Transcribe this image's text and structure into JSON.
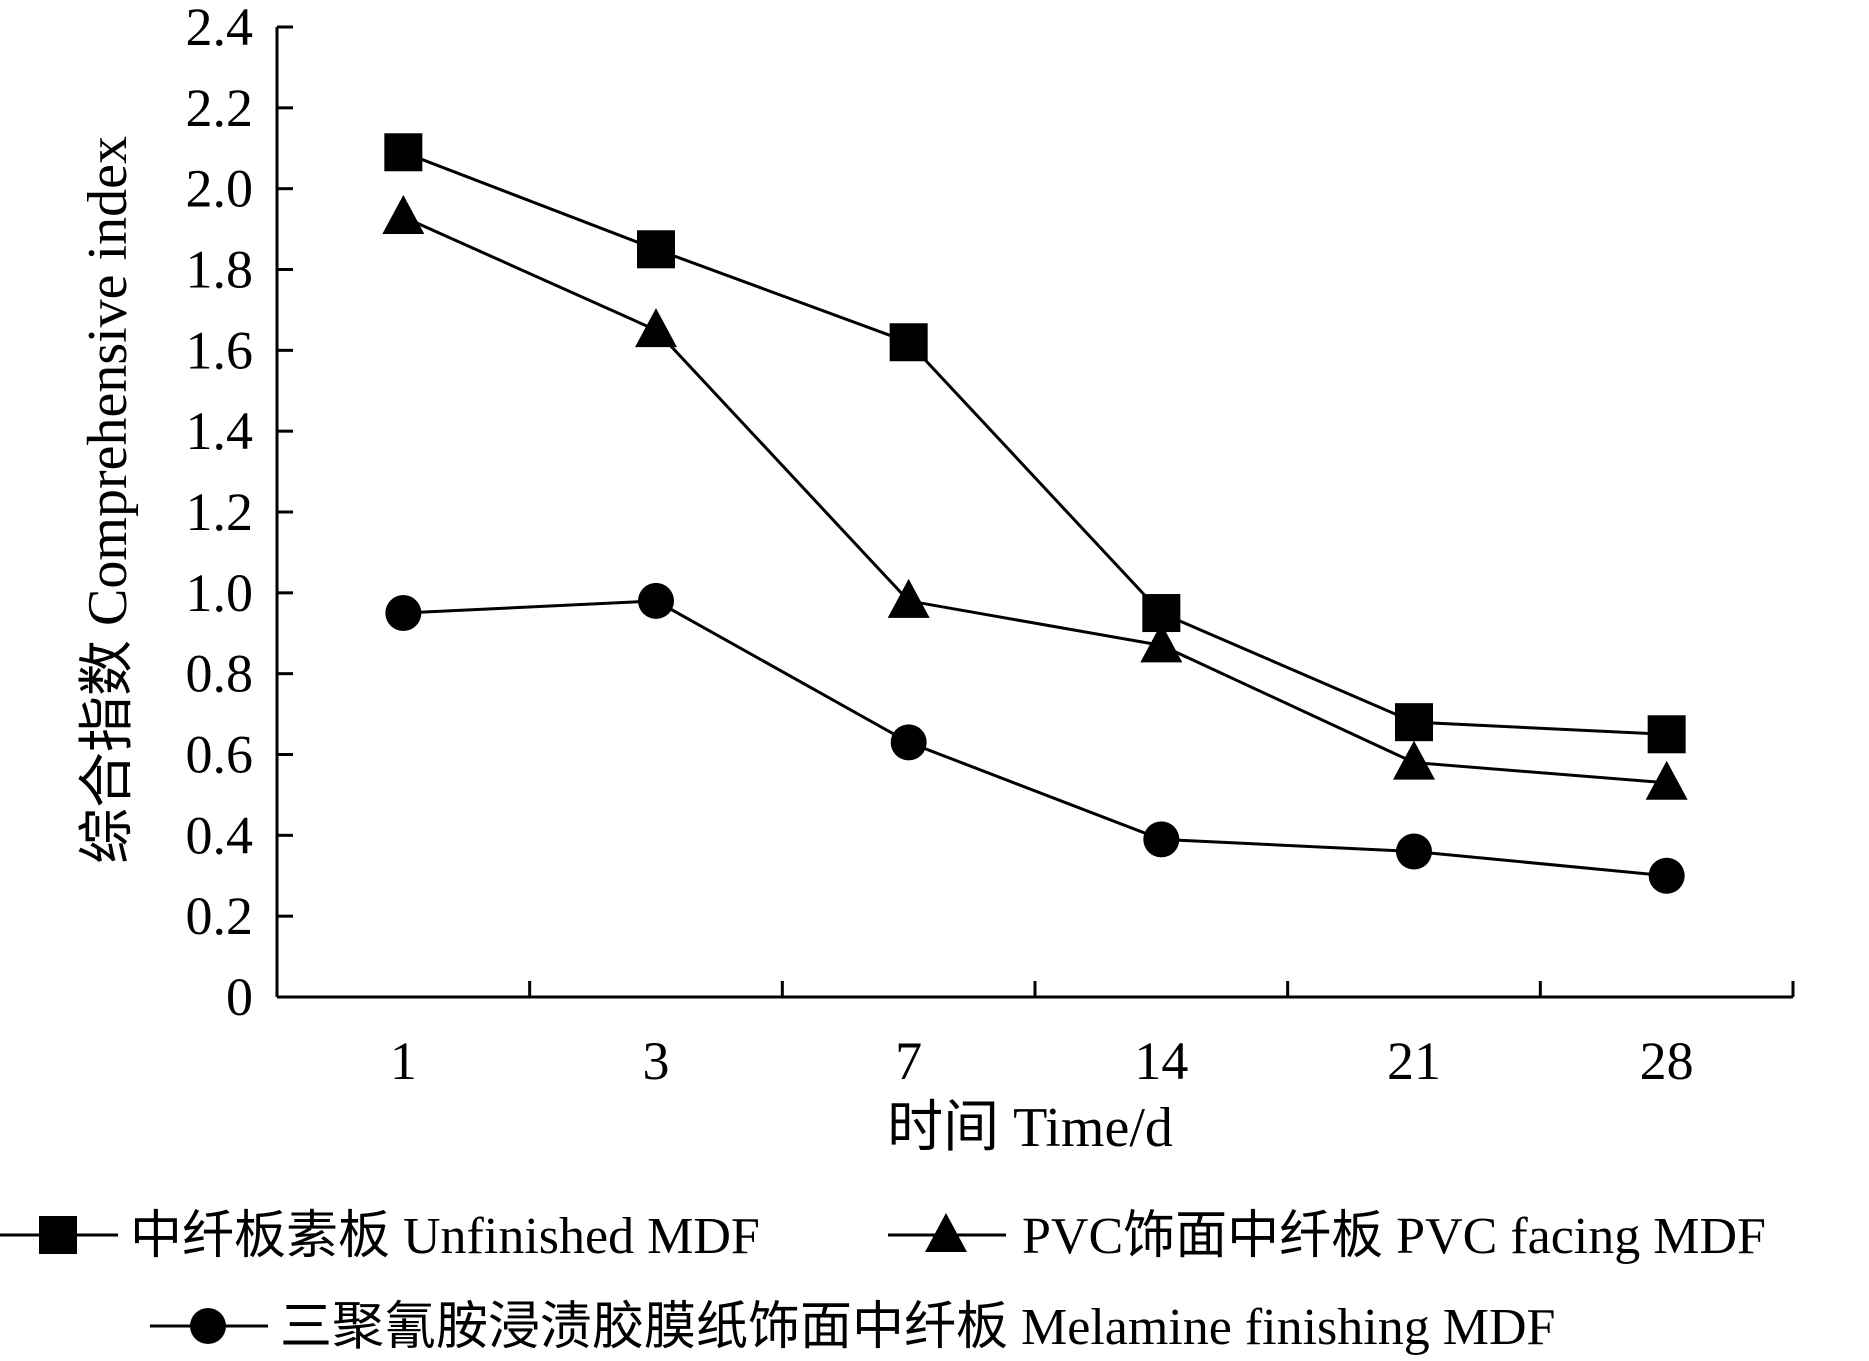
{
  "chart_data": {
    "type": "line",
    "xlabel": "时间  Time/d",
    "ylabel": "综合指数  Comprehensive index",
    "categories": [
      "1",
      "3",
      "7",
      "14",
      "21",
      "28"
    ],
    "ylim": [
      0,
      2.4
    ],
    "yticks": [
      "0",
      "0.2",
      "0.4",
      "0.6",
      "0.8",
      "1.0",
      "1.2",
      "1.4",
      "1.6",
      "1.8",
      "2.0",
      "2.2",
      "2.4"
    ],
    "grid": false,
    "legend_position": "bottom",
    "series": [
      {
        "name": "中纤板素板  Unfinished MDF",
        "marker": "square",
        "values": [
          2.09,
          1.85,
          1.62,
          0.95,
          0.68,
          0.65
        ]
      },
      {
        "name": "PVC饰面中纤板  PVC facing MDF",
        "marker": "triangle",
        "values": [
          1.93,
          1.65,
          0.98,
          0.87,
          0.58,
          0.53
        ]
      },
      {
        "name": "三聚氰胺浸渍胶膜纸饰面中纤板  Melamine finishing MDF",
        "marker": "circle",
        "values": [
          0.95,
          0.98,
          0.63,
          0.39,
          0.36,
          0.3
        ]
      }
    ],
    "colors": {
      "line": "#000000",
      "marker": "#000000"
    }
  }
}
